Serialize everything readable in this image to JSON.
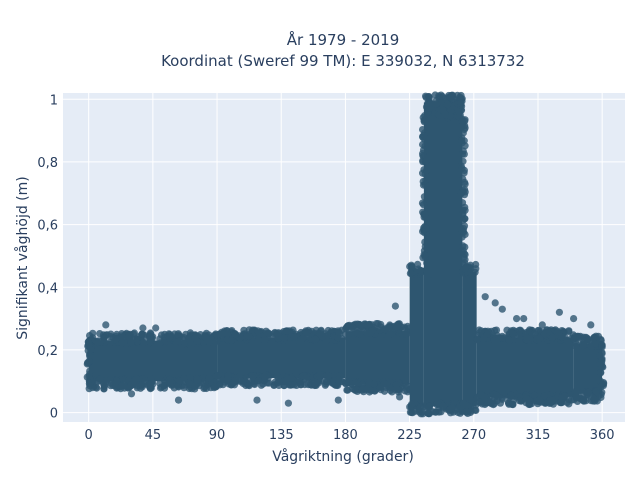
{
  "chart_data": {
    "type": "scatter",
    "title_lines": [
      "År 1979 - 2019",
      "Koordinat (Sweref 99 TM): E 339032, N 6313732"
    ],
    "xlabel": "Vågriktning (grader)",
    "ylabel": "Signifikant våghöjd (m)",
    "xlim": [
      -18,
      376
    ],
    "ylim": [
      -0.03,
      1.02
    ],
    "xticks": [
      0,
      45,
      90,
      135,
      180,
      225,
      270,
      315,
      360
    ],
    "xtick_labels": [
      "0",
      "45",
      "90",
      "135",
      "180",
      "225",
      "270",
      "315",
      "360"
    ],
    "yticks": [
      0,
      0.2,
      0.4,
      0.6,
      0.8,
      1
    ],
    "ytick_labels": [
      "0",
      "0,2",
      "0,4",
      "0,6",
      "0,8",
      "1"
    ],
    "grid": true,
    "plot_background": "#e5ecf6",
    "marker_color": "#2e5670",
    "marker_opacity": 0.8,
    "density_bands": [
      {
        "x": [
          0,
          90
        ],
        "y": [
          0.1,
          0.23
        ]
      },
      {
        "x": [
          90,
          180
        ],
        "y": [
          0.11,
          0.24
        ]
      },
      {
        "x": [
          180,
          225
        ],
        "y": [
          0.09,
          0.26
        ]
      },
      {
        "x": [
          225,
          235
        ],
        "y": [
          0.02,
          0.45
        ]
      },
      {
        "x": [
          235,
          262
        ],
        "y": [
          0.02,
          0.99
        ]
      },
      {
        "x": [
          262,
          272
        ],
        "y": [
          0.02,
          0.45
        ]
      },
      {
        "x": [
          272,
          340
        ],
        "y": [
          0.05,
          0.24
        ]
      },
      {
        "x": [
          340,
          360
        ],
        "y": [
          0.06,
          0.22
        ]
      }
    ],
    "outliers": [
      {
        "x": 12,
        "y": 0.28
      },
      {
        "x": 24,
        "y": 0.24
      },
      {
        "x": 38,
        "y": 0.27
      },
      {
        "x": 47,
        "y": 0.27
      },
      {
        "x": 30,
        "y": 0.06
      },
      {
        "x": 63,
        "y": 0.04
      },
      {
        "x": 82,
        "y": 0.24
      },
      {
        "x": 100,
        "y": 0.23
      },
      {
        "x": 118,
        "y": 0.04
      },
      {
        "x": 140,
        "y": 0.03
      },
      {
        "x": 175,
        "y": 0.04
      },
      {
        "x": 195,
        "y": 0.28
      },
      {
        "x": 215,
        "y": 0.34
      },
      {
        "x": 218,
        "y": 0.05
      },
      {
        "x": 228,
        "y": 0.36
      },
      {
        "x": 240,
        "y": 0.42
      },
      {
        "x": 278,
        "y": 0.37
      },
      {
        "x": 285,
        "y": 0.35
      },
      {
        "x": 290,
        "y": 0.33
      },
      {
        "x": 300,
        "y": 0.3
      },
      {
        "x": 305,
        "y": 0.3
      },
      {
        "x": 318,
        "y": 0.28
      },
      {
        "x": 330,
        "y": 0.32
      },
      {
        "x": 340,
        "y": 0.3
      },
      {
        "x": 352,
        "y": 0.28
      }
    ]
  }
}
